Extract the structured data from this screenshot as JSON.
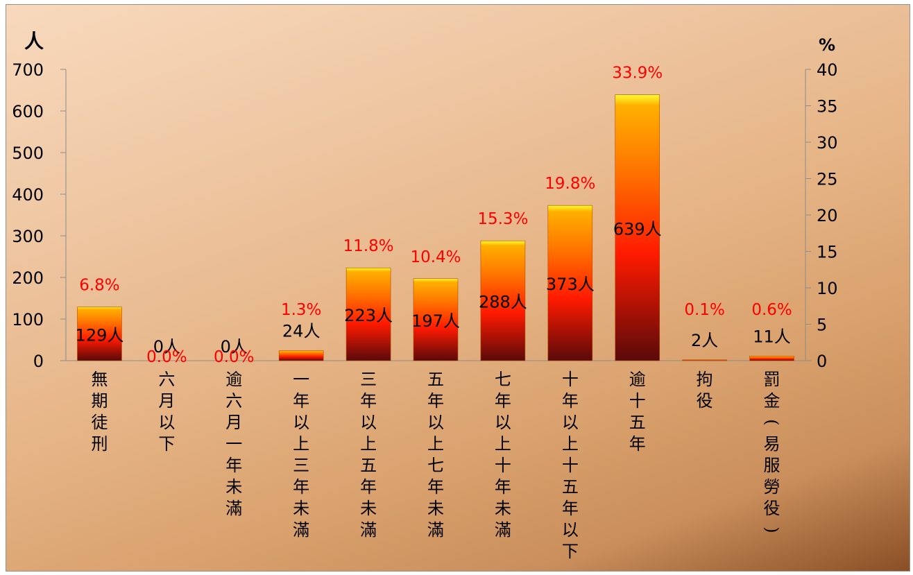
{
  "chart_data": {
    "type": "bar",
    "left_axis_unit": "人",
    "right_axis_unit": "%",
    "left_ylim": [
      0,
      700
    ],
    "left_ticks": [
      "0",
      "100",
      "200",
      "300",
      "400",
      "500",
      "600",
      "700"
    ],
    "right_ylim": [
      0,
      40
    ],
    "right_ticks": [
      "0",
      "5",
      "10",
      "15",
      "20",
      "25",
      "30",
      "35",
      "40"
    ],
    "categories": [
      "無期徒刑",
      "六月以下",
      "逾六月一年未滿",
      "一年以上三年未滿",
      "三年以上五年未滿",
      "五年以上七年未滿",
      "七年以上十年未滿",
      "十年以上十五年以下",
      "逾十五年",
      "拘役",
      "罰金(易服勞役)"
    ],
    "values": [
      129,
      0,
      0,
      24,
      223,
      197,
      288,
      373,
      639,
      2,
      11
    ],
    "count_labels": [
      "129人",
      "0人",
      "0人",
      "24人",
      "223人",
      "197人",
      "288人",
      "373人",
      "639人",
      "2人",
      "11人"
    ],
    "percent_labels": [
      "6.8%",
      "0.0%",
      "0.0%",
      "1.3%",
      "11.8%",
      "10.4%",
      "15.3%",
      "19.8%",
      "33.9%",
      "0.1%",
      "0.6%"
    ],
    "grid": false,
    "colors": {
      "bar_top": "#ffff00",
      "bar_mid": "#ff1a00",
      "bar_bottom": "#5a0a0a",
      "percent": "#ff0000",
      "count": "#000000"
    }
  }
}
